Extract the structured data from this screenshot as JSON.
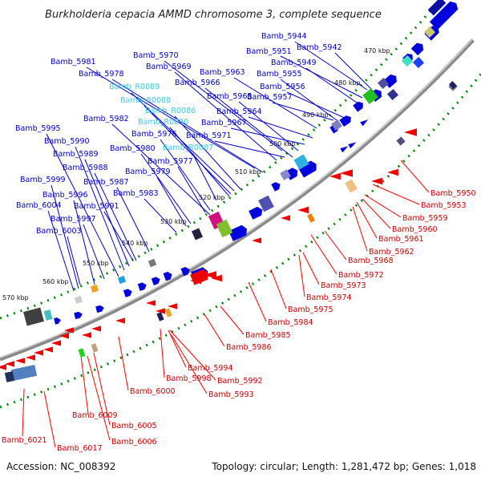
{
  "title": "Burkholderia cepacia AMMD chromosome 3, complete sequence",
  "footer": {
    "accession": "Accession: NC_008392",
    "topology": "Topology: circular; Length: 1,281,472 bp; Genes: 1,018"
  },
  "colors": {
    "forward": "#0000cc",
    "reverse": "#ff0000",
    "rna": "#33ccee",
    "backbone": "#7f7f7f",
    "ticks": "#008800"
  },
  "kbp_ticks": [
    "470 kbp",
    "480 kbp",
    "490 kbp",
    "500 kbp",
    "510 kbp",
    "520 kbp",
    "530 kbp",
    "540 kbp",
    "550 kbp",
    "560 kbp",
    "570 kbp"
  ],
  "forward_labels": [
    "Bamb_5944",
    "Bamb_5942",
    "Bamb_5951",
    "Bamb_5949",
    "Bamb_5970",
    "Bamb_5981",
    "Bamb_5969",
    "Bamb_5963",
    "Bamb_5955",
    "Bamb_5978",
    "Bamb_5966",
    "Bamb_5965",
    "Bamb_5956",
    "Bamb_R0089",
    "Bamb_5957",
    "Bamb_R0088",
    "Bamb_R0086",
    "Bamb_5964",
    "Bamb_5982",
    "Bamb_R0090",
    "Bamb_5967",
    "Bamb_5995",
    "Bamb_5976",
    "Bamb_5971",
    "Bamb_5990",
    "Bamb_5980",
    "Bamb_R0087",
    "Bamb_5989",
    "Bamb_5977",
    "Bamb_5988",
    "Bamb_5979",
    "Bamb_5999",
    "Bamb_5987",
    "Bamb_5983",
    "Bamb_5996",
    "Bamb_6004",
    "Bamb_5991",
    "Bamb_5997",
    "Bamb_6003"
  ],
  "reverse_labels": [
    "Bamb_5950",
    "Bamb_5953",
    "Bamb_5959",
    "Bamb_5960",
    "Bamb_5961",
    "Bamb_5962",
    "Bamb_5968",
    "Bamb_5972",
    "Bamb_5973",
    "Bamb_5974",
    "Bamb_5975",
    "Bamb_5984",
    "Bamb_5985",
    "Bamb_5986",
    "Bamb_5994",
    "Bamb_5998",
    "Bamb_5992",
    "Bamb_5993",
    "Bamb_6000",
    "Bamb_6009",
    "Bamb_6005",
    "Bamb_6006",
    "Bamb_6021",
    "Bamb_6017"
  ]
}
